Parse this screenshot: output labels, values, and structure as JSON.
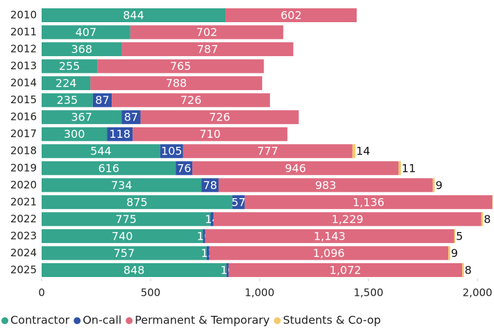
{
  "chart_data": {
    "type": "stacked-bar-horizontal",
    "categories": [
      "2010",
      "2011",
      "2012",
      "2013",
      "2014",
      "2015",
      "2016",
      "2017",
      "2018",
      "2019",
      "2020",
      "2021",
      "2022",
      "2023",
      "2024",
      "2025"
    ],
    "series": [
      {
        "name": "Contractor",
        "color": "#35a58d",
        "label_color": "#ffffff",
        "values": [
          844,
          407,
          368,
          255,
          224,
          235,
          367,
          300,
          544,
          616,
          734,
          875,
          775,
          740,
          757,
          848
        ]
      },
      {
        "name": "On-call",
        "color": "#2f52a8",
        "label_color": "#ffffff",
        "values": [
          null,
          null,
          null,
          null,
          null,
          87,
          87,
          118,
          105,
          76,
          78,
          57,
          14,
          10,
          13,
          10
        ]
      },
      {
        "name": "Permanent & Temporary",
        "color": "#de6a7f",
        "label_color": "#ffffff",
        "values": [
          602,
          702,
          787,
          765,
          788,
          726,
          726,
          710,
          777,
          946,
          983,
          1136,
          1229,
          1143,
          1096,
          1072
        ],
        "value_labels": [
          "602",
          "702",
          "787",
          "765",
          "788",
          "726",
          "726",
          "710",
          "777",
          "946",
          "983",
          "1,136",
          "1,229",
          "1,143",
          "1,096",
          "1,072"
        ]
      },
      {
        "name": "Students & Co-op",
        "color": "#f3c96c",
        "label_color": "#111111",
        "values": [
          null,
          null,
          null,
          null,
          null,
          null,
          null,
          null,
          14,
          11,
          9,
          2,
          8,
          5,
          9,
          8
        ]
      }
    ],
    "xlim": [
      0,
      2076
    ],
    "xticks": [
      0,
      500,
      {
        "value": 1000,
        "label": "1,000"
      },
      {
        "value": 1500,
        "label": "1,500"
      },
      {
        "value": 2000,
        "label": "2,000"
      }
    ],
    "legend": "bottom-left"
  }
}
